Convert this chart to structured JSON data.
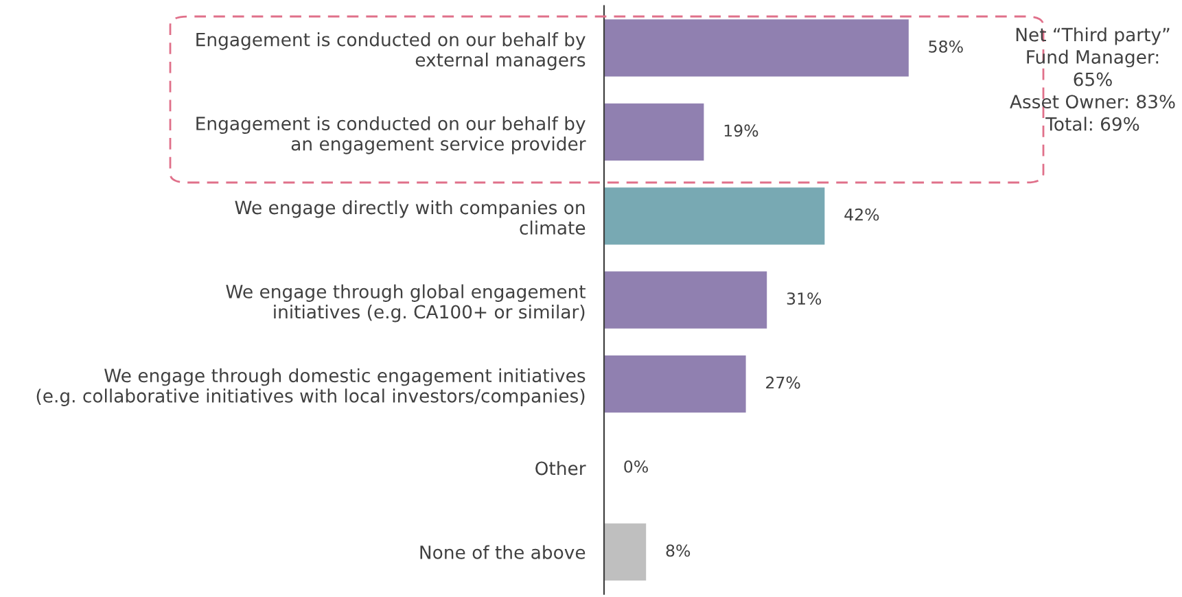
{
  "chart_data": {
    "type": "bar",
    "orientation": "horizontal",
    "categories": [
      "Engagement is conducted on our behalf by\nexternal managers",
      "Engagement is conducted on our behalf by\nan engagement service provider",
      "We engage directly with companies on\nclimate",
      "We engage through global engagement\ninitiatives (e.g. CA100+ or similar)",
      "We engage through domestic engagement initiatives\n(e.g. collaborative initiatives with local investors/companies)",
      "Other",
      "None of the above"
    ],
    "values": [
      58,
      19,
      42,
      31,
      27,
      0,
      8
    ],
    "value_labels": [
      "58%",
      "19%",
      "42%",
      "31%",
      "27%",
      "0%",
      "8%"
    ],
    "colors": [
      "#9080b0",
      "#9080b0",
      "#78a9b3",
      "#9080b0",
      "#9080b0",
      "#9080b0",
      "#bfbfbf"
    ],
    "tick_labels": "y",
    "grid": false,
    "legend": false,
    "annotations": [
      "Net “Third party”\nFund Manager:\n65%\nAsset Owner: 83%\nTotal: 69%"
    ]
  }
}
